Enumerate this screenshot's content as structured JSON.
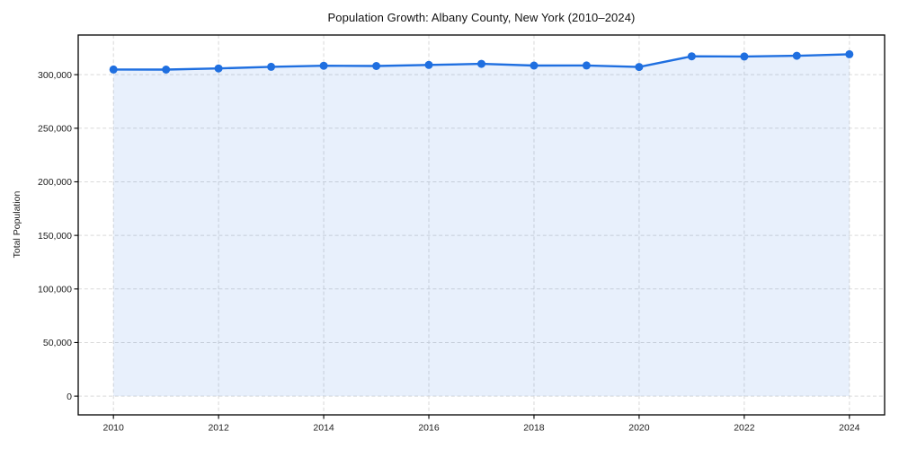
{
  "page": {
    "background_color": "#ffffff"
  },
  "chart_data": {
    "type": "line",
    "title": "Population Growth: Albany County, New York (2010–2024)",
    "xlabel": "",
    "ylabel": "Total Population",
    "x": [
      2010,
      2011,
      2012,
      2013,
      2014,
      2015,
      2016,
      2017,
      2018,
      2019,
      2020,
      2021,
      2022,
      2023,
      2024
    ],
    "series": [
      {
        "name": "Total Population",
        "values": [
          304800,
          304700,
          305800,
          307300,
          308300,
          308100,
          309100,
          310100,
          308500,
          308600,
          307200,
          317100,
          317000,
          317600,
          319100
        ]
      }
    ],
    "x_ticks": [
      2010,
      2012,
      2014,
      2016,
      2018,
      2020,
      2022,
      2024
    ],
    "x_tick_labels": [
      "2010",
      "2012",
      "2014",
      "2016",
      "2018",
      "2020",
      "2022",
      "2024"
    ],
    "y_ticks": [
      0,
      50000,
      100000,
      150000,
      200000,
      250000,
      300000
    ],
    "y_tick_labels": [
      "0",
      "50,000",
      "100,000",
      "150,000",
      "200,000",
      "250,000",
      "300,000"
    ],
    "xlim": [
      2009.33,
      2024.67
    ],
    "ylim": [
      -17500,
      337000
    ],
    "grid": true,
    "grid_style": "dashed",
    "legend_position": "none",
    "area_fill": true,
    "marker": "circle",
    "line_color": "#1f6fe0",
    "marker_color": "#1f6fe0",
    "fill_color": "rgba(31,111,224,0.10)",
    "grid_color": "#d9d9d9",
    "spine_color": "#000000",
    "text_color": "#1c1c1c"
  }
}
